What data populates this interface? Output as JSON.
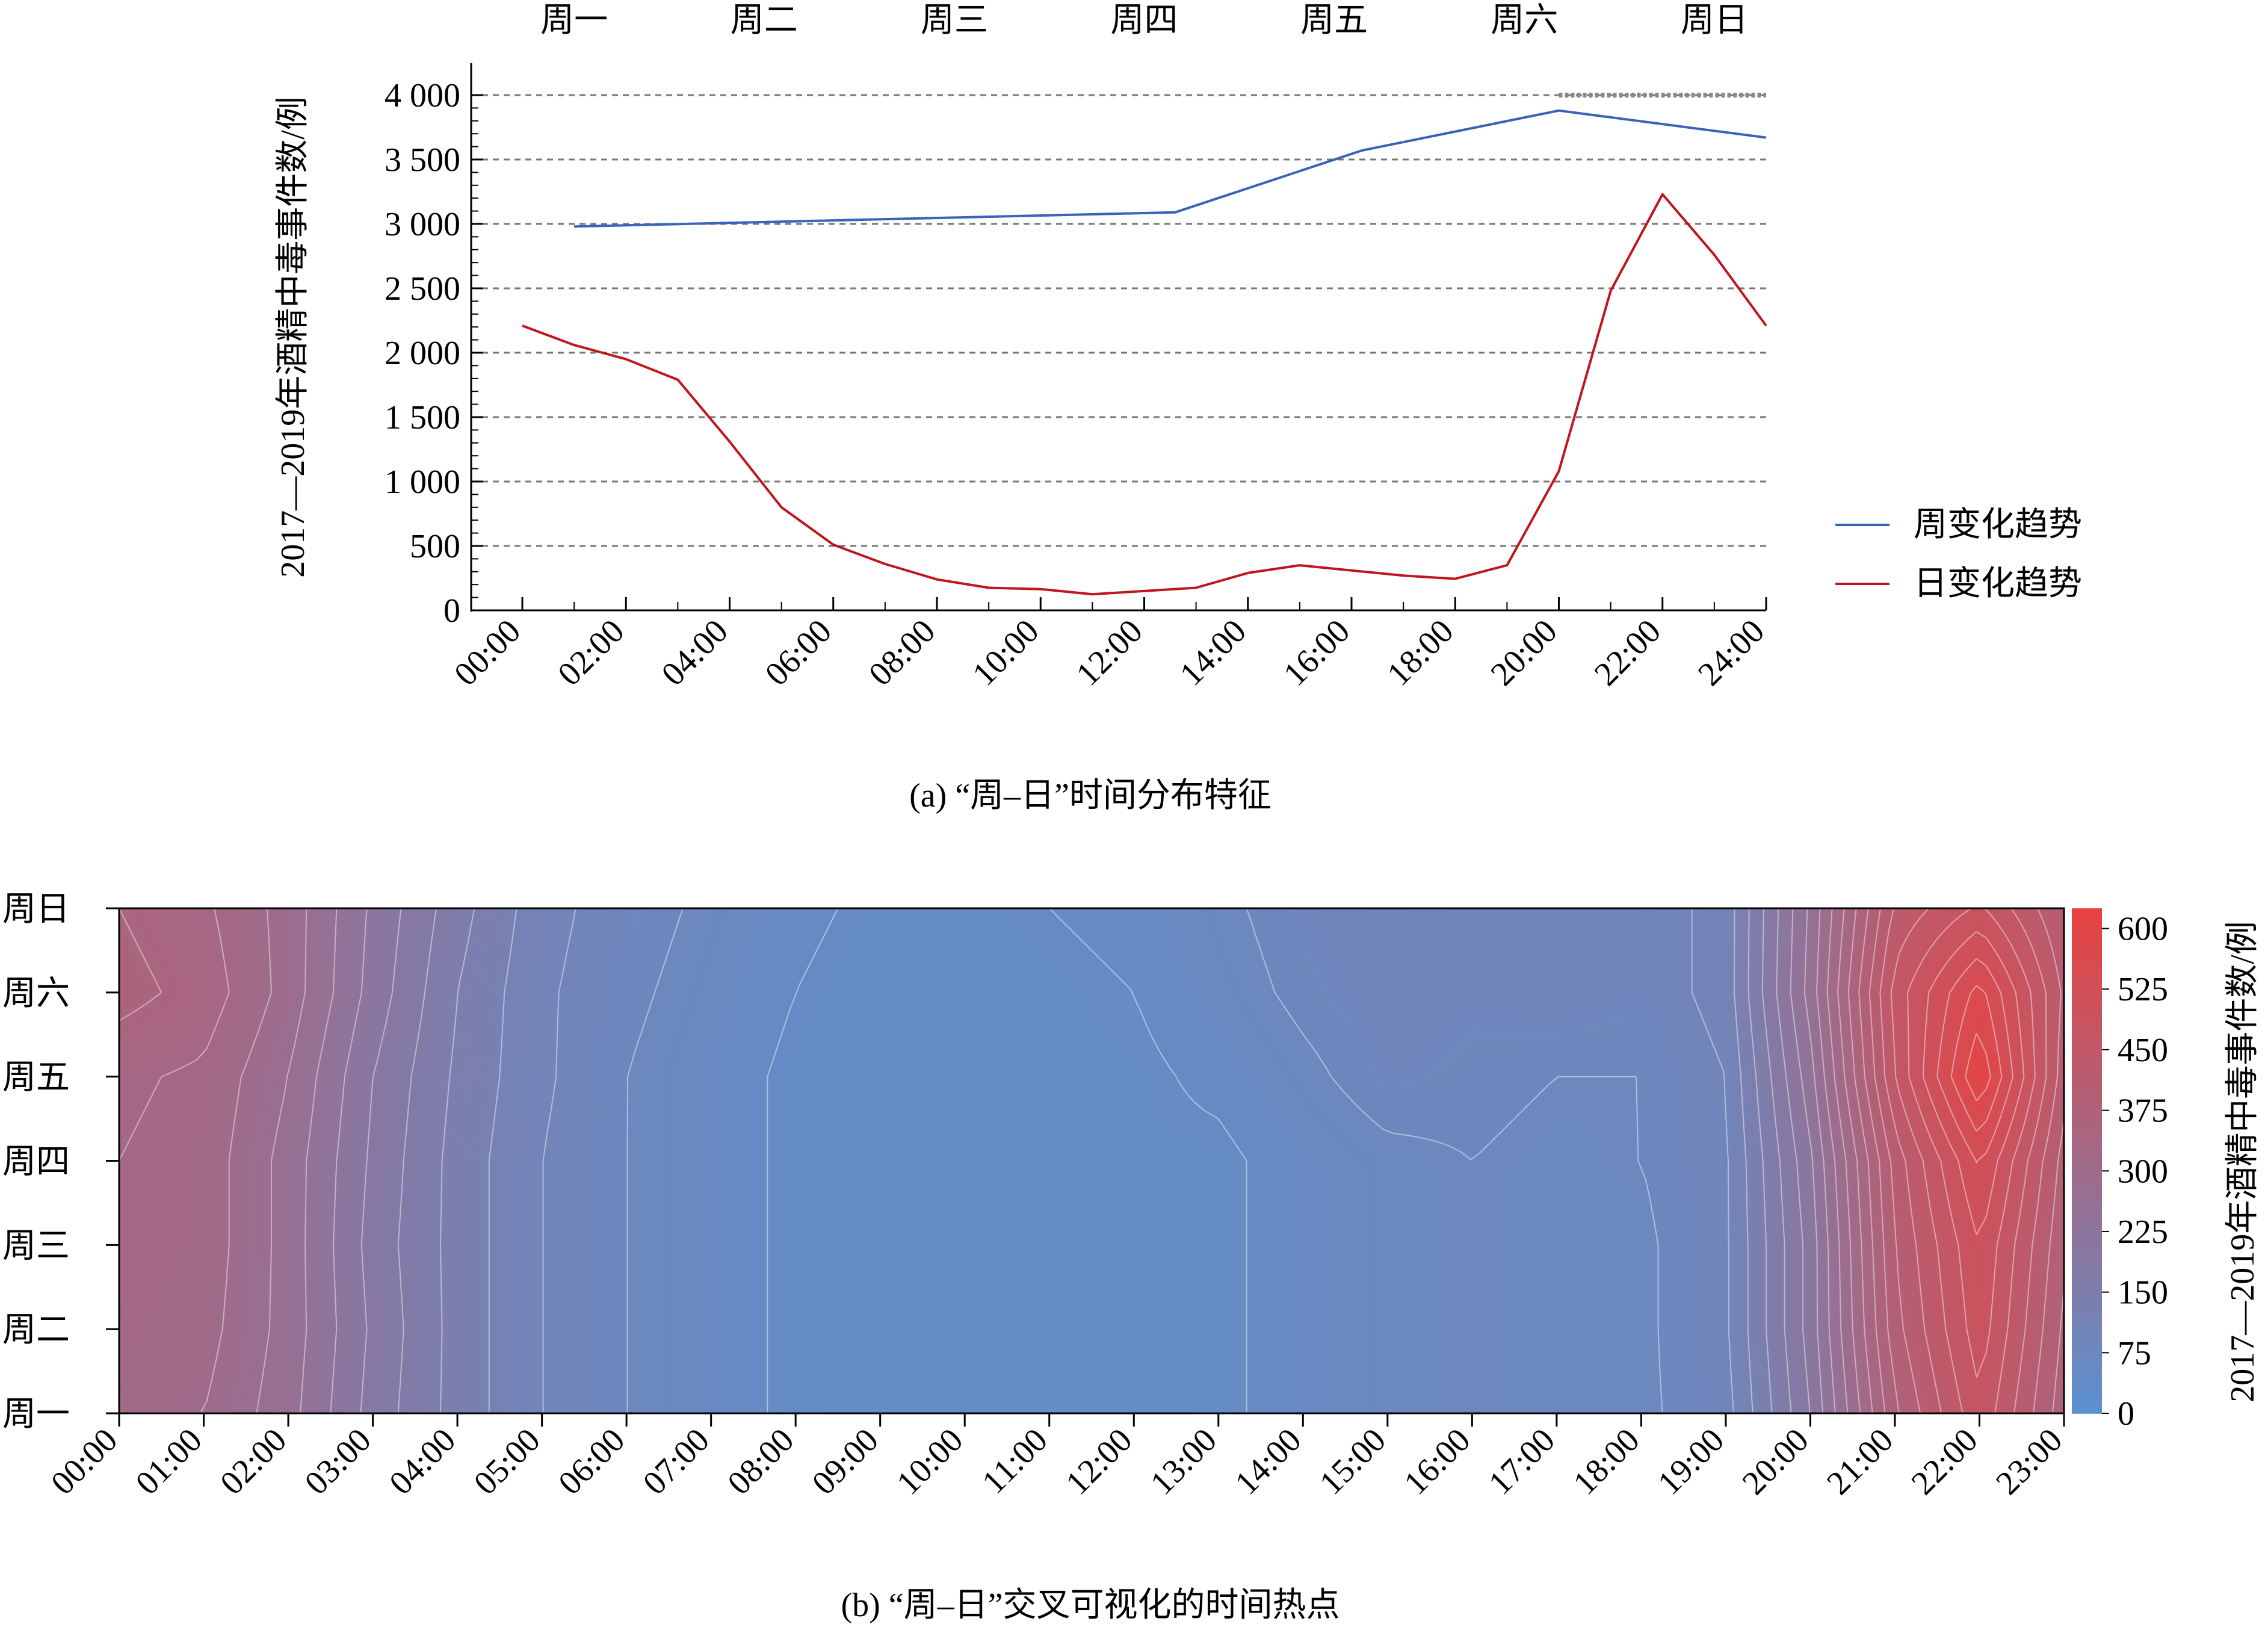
{
  "chart_data": [
    {
      "type": "line",
      "ylabel": "2017—2019年酒精中毒事件数/例",
      "ylim": [
        0,
        4000
      ],
      "grid": "horizontal dashed",
      "legend_position": "right",
      "x_ticks": [
        "00:00",
        "02:00",
        "04:00",
        "06:00",
        "08:00",
        "10:00",
        "12:00",
        "14:00",
        "16:00",
        "18:00",
        "20:00",
        "22:00",
        "24:00"
      ],
      "y_ticks": [
        "0",
        "500",
        "1 000",
        "1 500",
        "2 000",
        "2 500",
        "3 000",
        "3 500",
        "4 000"
      ],
      "y_tick_values": [
        0,
        500,
        1000,
        1500,
        2000,
        2500,
        3000,
        3500,
        4000
      ],
      "top_ticks": [
        "周一",
        "周二",
        "周三",
        "周四",
        "周五",
        "周六",
        "周日"
      ],
      "top_tick_hours": [
        2,
        9.33,
        16.67,
        24,
        31.33,
        38.67,
        46
      ],
      "series": [
        {
          "name": "周变化趋势",
          "color": "#3a62b8",
          "x": [
            1.0,
            12.6,
            16.2,
            20.0,
            24.0
          ],
          "y": [
            2980,
            3090,
            3570,
            3880,
            3670
          ]
        },
        {
          "name": "日变化趋势",
          "color": "#c0141e",
          "x": [
            0,
            1,
            2,
            3,
            4,
            5,
            6,
            7,
            8,
            9,
            10,
            11,
            12,
            13,
            14,
            15,
            16,
            17,
            18,
            19,
            20,
            21,
            22,
            23,
            24
          ],
          "y": [
            2210,
            2060,
            1950,
            1790,
            1310,
            800,
            510,
            360,
            240,
            175,
            165,
            125,
            150,
            175,
            290,
            350,
            310,
            270,
            245,
            350,
            1080,
            2480,
            3230,
            2760,
            2210
          ]
        }
      ],
      "reference_line": {
        "y": 4000,
        "x_from": 20,
        "x_to": 24,
        "style": "dotted"
      },
      "caption": "(a) “周–日”时间分布特征"
    },
    {
      "type": "heatmap",
      "categories_x": [
        "00:00",
        "01:00",
        "02:00",
        "03:00",
        "04:00",
        "05:00",
        "06:00",
        "07:00",
        "08:00",
        "09:00",
        "10:00",
        "11:00",
        "12:00",
        "13:00",
        "14:00",
        "15:00",
        "16:00",
        "17:00",
        "18:00",
        "19:00",
        "20:00",
        "21:00",
        "22:00",
        "23:00"
      ],
      "categories_y": [
        "周一",
        "周二",
        "周三",
        "周四",
        "周五",
        "周六",
        "周日"
      ],
      "row_order": "bottom-to-top",
      "values": [
        [
          310,
          300,
          260,
          190,
          140,
          100,
          75,
          60,
          45,
          40,
          40,
          40,
          40,
          45,
          60,
          70,
          75,
          70,
          70,
          90,
          200,
          370,
          470,
          360
        ],
        [
          320,
          310,
          265,
          195,
          140,
          100,
          75,
          60,
          45,
          40,
          40,
          40,
          40,
          45,
          60,
          70,
          75,
          70,
          70,
          95,
          210,
          390,
          490,
          370
        ],
        [
          325,
          315,
          265,
          190,
          140,
          100,
          75,
          60,
          45,
          40,
          40,
          40,
          40,
          45,
          60,
          70,
          75,
          70,
          70,
          95,
          210,
          400,
          500,
          380
        ],
        [
          325,
          315,
          265,
          195,
          140,
          100,
          75,
          60,
          45,
          40,
          40,
          40,
          45,
          45,
          60,
          70,
          75,
          70,
          75,
          95,
          220,
          410,
          530,
          390
        ],
        [
          330,
          320,
          275,
          200,
          145,
          105,
          75,
          60,
          45,
          40,
          40,
          45,
          45,
          55,
          70,
          85,
          80,
          75,
          75,
          100,
          240,
          450,
          600,
          410
        ],
        [
          360,
          340,
          290,
          215,
          150,
          105,
          80,
          65,
          50,
          40,
          40,
          45,
          50,
          65,
          80,
          90,
          85,
          90,
          85,
          110,
          260,
          460,
          560,
          420
        ],
        [
          350,
          330,
          290,
          220,
          160,
          110,
          85,
          70,
          55,
          45,
          45,
          50,
          55,
          70,
          85,
          90,
          85,
          85,
          85,
          110,
          255,
          430,
          480,
          400
        ]
      ],
      "color_scale": {
        "min": 0,
        "max": 625,
        "low_color": "#5b91d0",
        "high_color": "#e8423f"
      },
      "colorbar_ticks": [
        "0",
        "75",
        "150",
        "225",
        "300",
        "375",
        "450",
        "525",
        "600"
      ],
      "colorbar_tick_values": [
        0,
        75,
        150,
        225,
        300,
        375,
        450,
        525,
        600
      ],
      "colorbar_label": "2017—2019年酒精中毒事件数/例",
      "contour_lines": true,
      "caption": "(b) “周–日”交叉可视化的时间热点"
    }
  ]
}
